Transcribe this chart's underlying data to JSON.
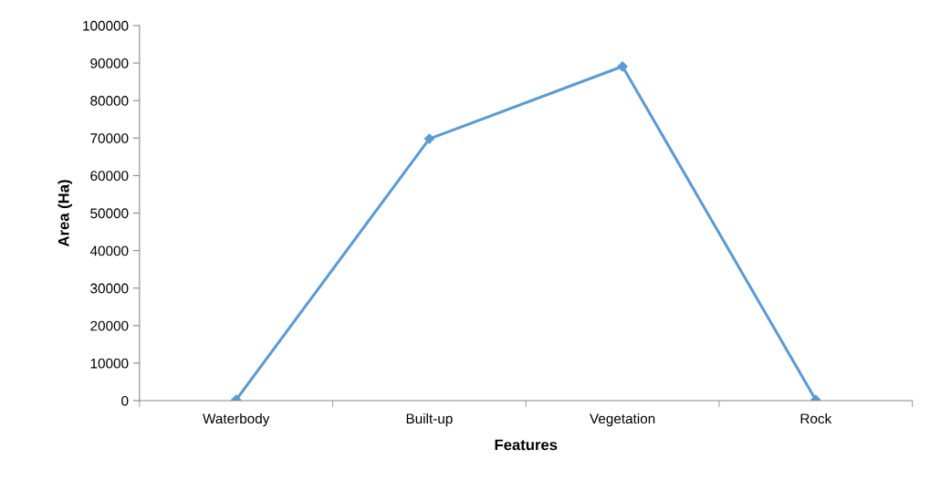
{
  "chart_data": {
    "type": "line",
    "xlabel": "Features",
    "ylabel": "Area (Ha)",
    "categories": [
      "Waterbody",
      "Built-up",
      "Vegetation",
      "Rock"
    ],
    "series": [
      {
        "color": "#5b9bd5",
        "values": [
          200,
          69800,
          89100,
          200
        ]
      }
    ],
    "ylim": [
      0,
      100000
    ],
    "yticks": [
      0,
      10000,
      20000,
      30000,
      40000,
      50000,
      60000,
      70000,
      80000,
      90000,
      100000
    ],
    "grid": false,
    "legend": false,
    "marker": "diamond",
    "line_style": "solid"
  }
}
